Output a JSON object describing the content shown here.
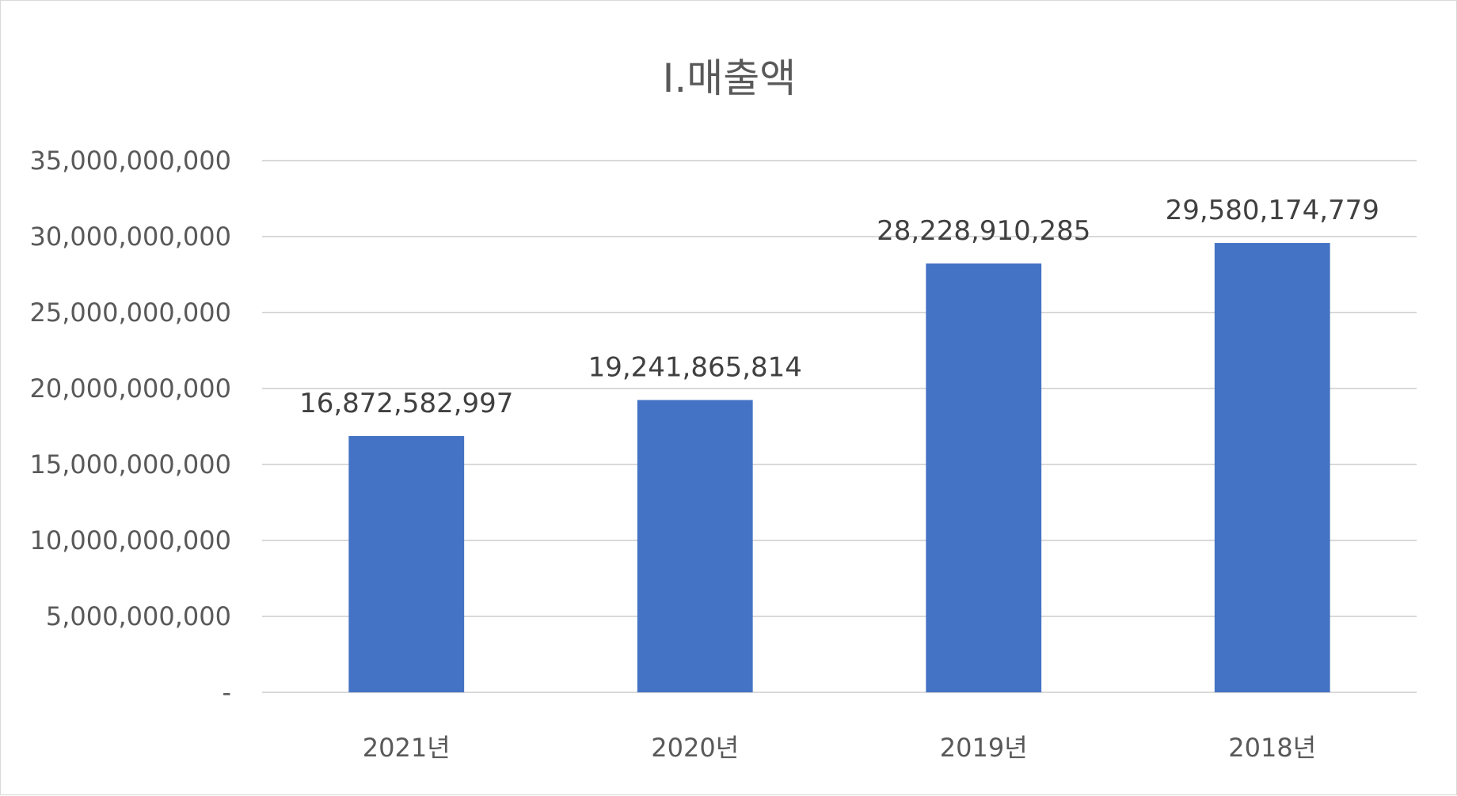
{
  "chart_data": {
    "type": "bar",
    "title": "Ⅰ.매출액",
    "categories": [
      "2021년",
      "2020년",
      "2019년",
      "2018년"
    ],
    "values": [
      16872582997,
      19241865814,
      28228910285,
      29580174779
    ],
    "data_labels": [
      "16,872,582,997",
      "19,241,865,814",
      "28,228,910,285",
      "29,580,174,779"
    ],
    "ylim": [
      0,
      35000000000
    ],
    "yticks": [
      {
        "value": 0,
        "label": "-"
      },
      {
        "value": 5000000000,
        "label": "5,000,000,000"
      },
      {
        "value": 10000000000,
        "label": "10,000,000,000"
      },
      {
        "value": 15000000000,
        "label": "15,000,000,000"
      },
      {
        "value": 20000000000,
        "label": "20,000,000,000"
      },
      {
        "value": 25000000000,
        "label": "25,000,000,000"
      },
      {
        "value": 30000000000,
        "label": "30,000,000,000"
      },
      {
        "value": 35000000000,
        "label": "35,000,000,000"
      }
    ],
    "xlabel": "",
    "ylabel": "",
    "grid": true,
    "legend": "none",
    "bar_color": "#4472C4"
  }
}
